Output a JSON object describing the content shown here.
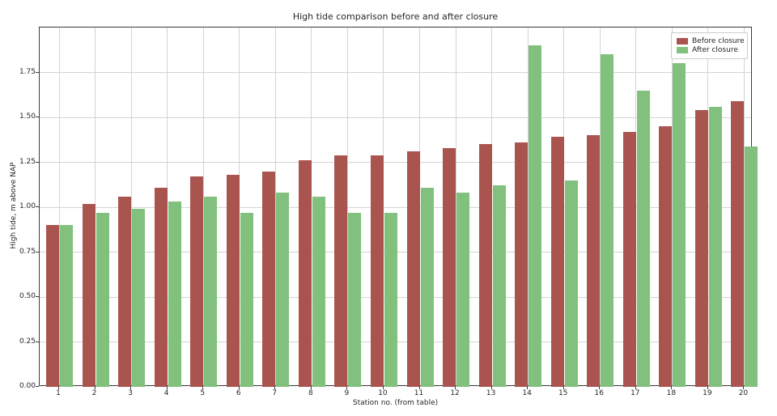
{
  "chart_data": {
    "type": "bar",
    "title": "High tide comparison before and after closure",
    "xlabel": "Station no. (from table)",
    "ylabel": "High tide, m above NAP",
    "categories": [
      "1",
      "2",
      "3",
      "4",
      "5",
      "6",
      "7",
      "8",
      "9",
      "10",
      "11",
      "12",
      "13",
      "14",
      "15",
      "16",
      "17",
      "18",
      "19",
      "20"
    ],
    "series": [
      {
        "name": "Before closure",
        "color": "#a9544f",
        "values": [
          0.9,
          1.02,
          1.06,
          1.11,
          1.17,
          1.18,
          1.2,
          1.26,
          1.29,
          1.29,
          1.31,
          1.33,
          1.35,
          1.36,
          1.39,
          1.4,
          1.42,
          1.45,
          1.54,
          1.59
        ]
      },
      {
        "name": "After closure",
        "color": "#82c17d",
        "values": [
          0.9,
          0.97,
          0.99,
          1.03,
          1.06,
          0.97,
          1.08,
          1.06,
          0.97,
          0.97,
          1.11,
          1.08,
          1.12,
          1.9,
          1.15,
          1.85,
          1.65,
          1.8,
          1.56,
          1.34
        ]
      }
    ],
    "ylim": [
      0,
      2.0
    ],
    "yticks": [
      0.0,
      0.25,
      0.5,
      0.75,
      1.0,
      1.25,
      1.5,
      1.75
    ],
    "ytick_labels": [
      "0.00",
      "0.25",
      "0.50",
      "0.75",
      "1.00",
      "1.25",
      "1.50",
      "1.75"
    ],
    "grid": true,
    "legend_position": "upper right",
    "colors": {
      "grid": "#d4d4d4",
      "spine": "#3a3a3a",
      "text": "#262626",
      "background": "#ffffff"
    }
  }
}
